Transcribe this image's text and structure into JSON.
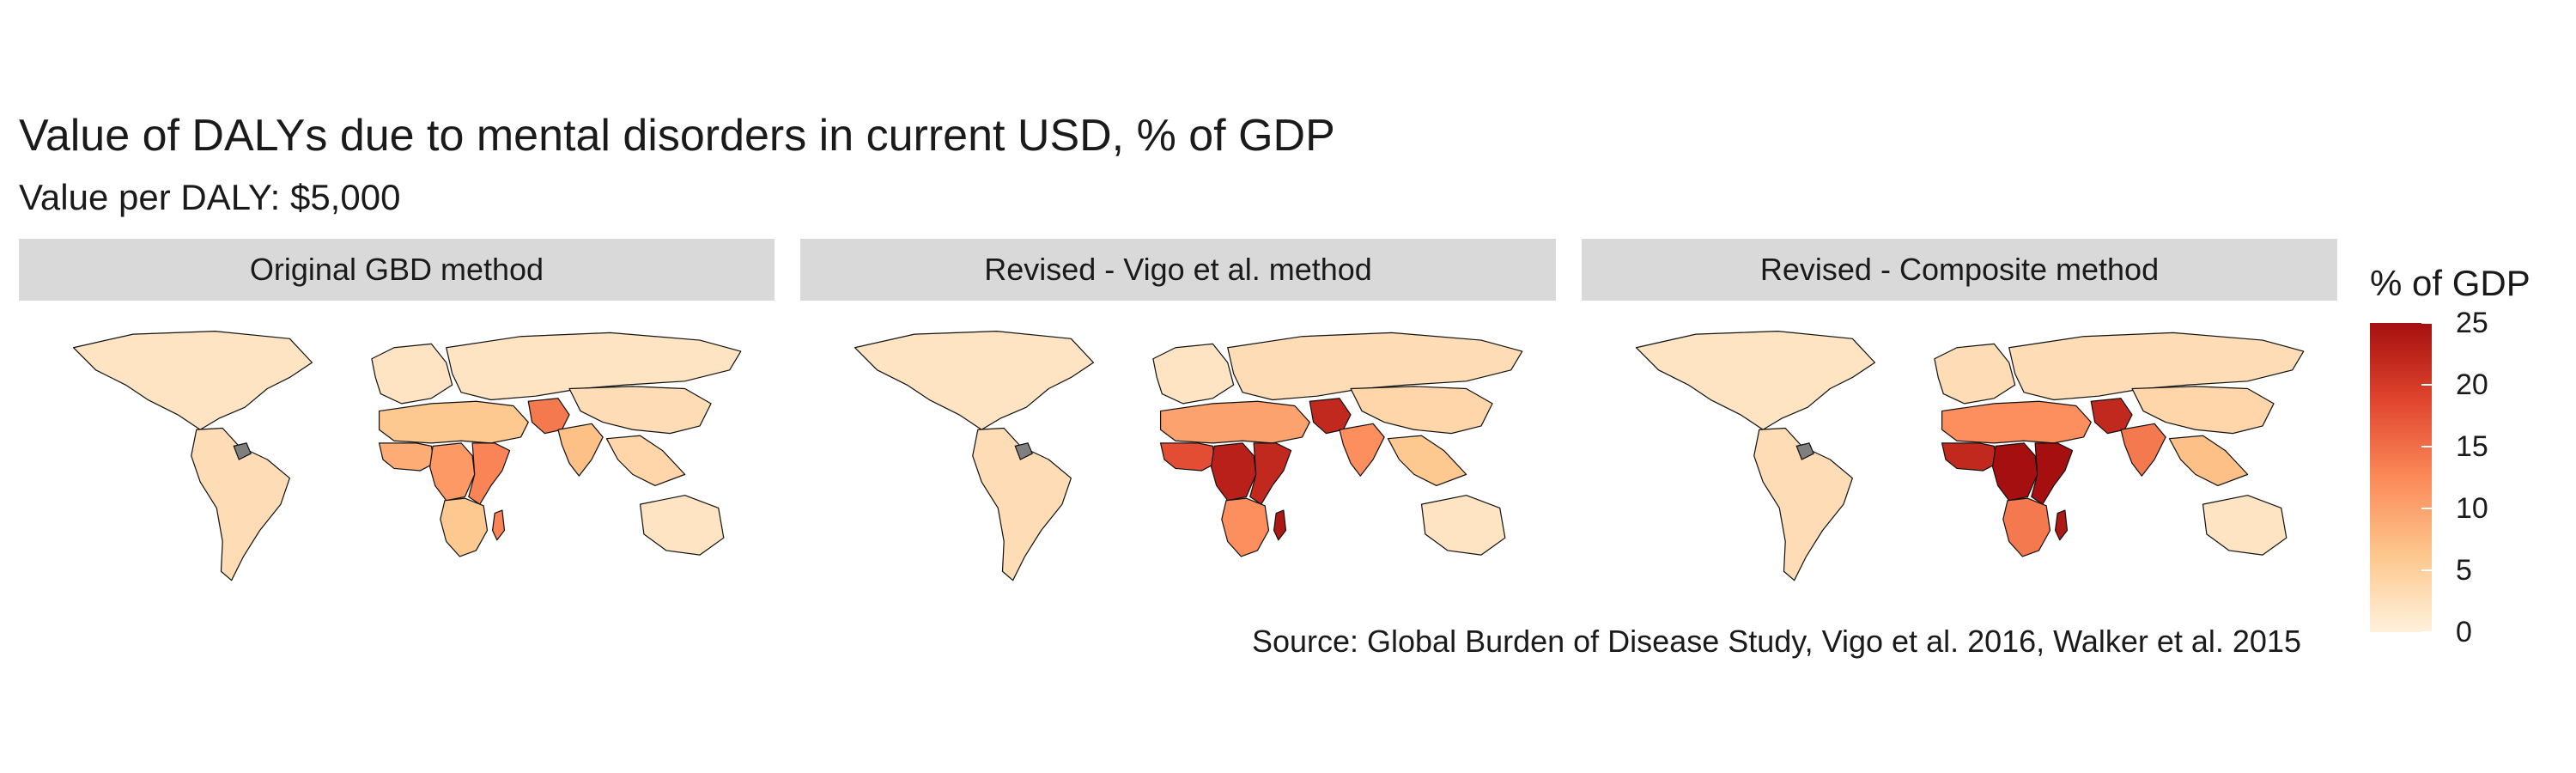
{
  "title": "Value of DALYs due to mental disorders in current USD, % of GDP",
  "subtitle": "Value per DALY: $5,000",
  "caption": "Source: Global Burden of Disease Study, Vigo et al. 2016, Walker et al. 2015",
  "panels": [
    {
      "label": "Original GBD method"
    },
    {
      "label": "Revised - Vigo et al. method"
    },
    {
      "label": "Revised - Composite method"
    }
  ],
  "legend": {
    "title": "% of GDP",
    "ticks": [
      "25",
      "20",
      "15",
      "10",
      "5",
      "0"
    ],
    "range": [
      0,
      25
    ],
    "colors": [
      "#fff1dc",
      "#fdc78d",
      "#fc8a59",
      "#e0452e",
      "#a50f0f"
    ],
    "missing_color": "#7f7f7f"
  },
  "map_data": {
    "regions": [
      {
        "region": "North America",
        "values": [
          2,
          2,
          2
        ]
      },
      {
        "region": "Latin America",
        "values": [
          3,
          3,
          3
        ]
      },
      {
        "region": "Europe",
        "values": [
          2,
          2,
          3
        ]
      },
      {
        "region": "Russia and Central Asia",
        "values": [
          2,
          3,
          3
        ]
      },
      {
        "region": "North Africa and Middle East",
        "values": [
          6,
          10,
          12
        ]
      },
      {
        "region": "West Africa",
        "values": [
          9,
          18,
          22
        ]
      },
      {
        "region": "Central Africa",
        "values": [
          11,
          23,
          25
        ]
      },
      {
        "region": "East Africa",
        "values": [
          13,
          22,
          25
        ]
      },
      {
        "region": "Southern Africa",
        "values": [
          6,
          12,
          14
        ]
      },
      {
        "region": "Madagascar",
        "values": [
          13,
          24,
          24
        ]
      },
      {
        "region": "Pakistan and Afghanistan",
        "values": [
          14,
          22,
          22
        ]
      },
      {
        "region": "India",
        "values": [
          7,
          12,
          14
        ]
      },
      {
        "region": "East Asia",
        "values": [
          3,
          4,
          4
        ]
      },
      {
        "region": "Southeast Asia",
        "values": [
          4,
          6,
          7
        ]
      },
      {
        "region": "Oceania",
        "values": [
          2,
          2,
          2
        ]
      }
    ]
  }
}
